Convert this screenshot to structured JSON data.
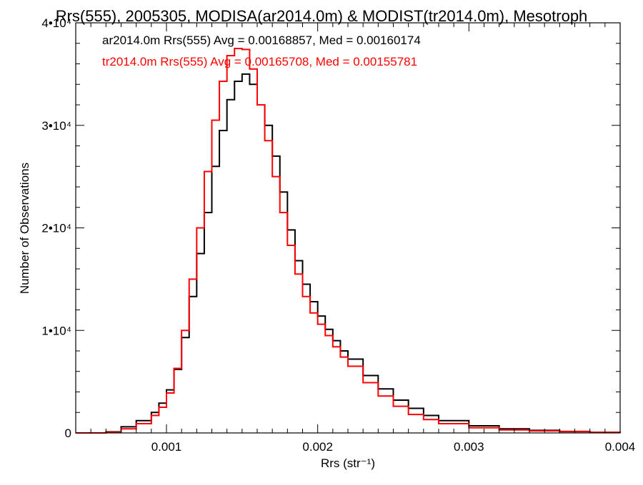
{
  "chart_data": {
    "type": "line",
    "title": "Rrs(555), 2005305, MODISA(ar2014.0m) & MODIST(tr2014.0m), Mesotroph",
    "xlabel": "Rrs (str⁻¹)",
    "ylabel": "Number of Observations",
    "xlim": [
      0.0004,
      0.004
    ],
    "ylim": [
      0,
      40000
    ],
    "x_ticks": [
      {
        "value": 0.001,
        "label": "0.001"
      },
      {
        "value": 0.002,
        "label": "0.002"
      },
      {
        "value": 0.003,
        "label": "0.003"
      },
      {
        "value": 0.004,
        "label": "0.004"
      }
    ],
    "y_ticks": [
      {
        "value": 0,
        "label": "0"
      },
      {
        "value": 10000,
        "label": "1•10⁴"
      },
      {
        "value": 20000,
        "label": "2•10⁴"
      },
      {
        "value": 30000,
        "label": "3•10⁴"
      },
      {
        "value": 40000,
        "label": "4•10⁴"
      }
    ],
    "grid": false,
    "legend_position": "top-left",
    "annotations": [
      {
        "text": "ar2014.0m Rrs(555) Avg = 0.00168857, Med = 0.00160174",
        "color": "#000000"
      },
      {
        "text": "tr2014.0m Rrs(555) Avg = 0.00165708, Med = 0.00155781",
        "color": "#ff0000"
      }
    ],
    "series": [
      {
        "color": "#000000",
        "x": [
          0.0004,
          0.0005,
          0.0006,
          0.0007,
          0.0008,
          0.0009,
          0.00095,
          0.001,
          0.00105,
          0.0011,
          0.00115,
          0.0012,
          0.00125,
          0.0013,
          0.00135,
          0.0014,
          0.00145,
          0.0015,
          0.00155,
          0.0016,
          0.00165,
          0.0017,
          0.00175,
          0.0018,
          0.00185,
          0.0019,
          0.00195,
          0.002,
          0.00205,
          0.0021,
          0.00215,
          0.0022,
          0.0023,
          0.0024,
          0.0025,
          0.0026,
          0.0027,
          0.0028,
          0.003,
          0.0032,
          0.0034,
          0.0036,
          0.0038,
          0.004
        ],
        "values": [
          0,
          0,
          100,
          600,
          1200,
          2000,
          2900,
          4200,
          6200,
          9300,
          13300,
          17500,
          21500,
          26000,
          29500,
          32500,
          34300,
          35000,
          34000,
          32000,
          30000,
          27000,
          23500,
          19800,
          16800,
          14500,
          12800,
          11400,
          10100,
          9000,
          8000,
          7200,
          5600,
          4300,
          3200,
          2400,
          1700,
          1200,
          700,
          400,
          250,
          150,
          60,
          30
        ]
      },
      {
        "color": "#ff0000",
        "x": [
          0.0004,
          0.0005,
          0.0006,
          0.0007,
          0.0008,
          0.0009,
          0.00095,
          0.001,
          0.00105,
          0.0011,
          0.00115,
          0.0012,
          0.00125,
          0.0013,
          0.00135,
          0.0014,
          0.00145,
          0.0015,
          0.00155,
          0.0016,
          0.00165,
          0.0017,
          0.00175,
          0.0018,
          0.00185,
          0.0019,
          0.00195,
          0.002,
          0.00205,
          0.0021,
          0.00215,
          0.0022,
          0.0023,
          0.0024,
          0.0025,
          0.0026,
          0.0027,
          0.0028,
          0.003,
          0.0032,
          0.0034,
          0.0036,
          0.0038,
          0.004
        ],
        "values": [
          0,
          0,
          50,
          400,
          900,
          1700,
          2500,
          3900,
          6300,
          10000,
          15000,
          20000,
          25500,
          30500,
          34300,
          36800,
          37500,
          37400,
          35500,
          32000,
          28500,
          25000,
          21500,
          18300,
          15500,
          13300,
          11700,
          10600,
          9500,
          8400,
          7400,
          6500,
          4900,
          3600,
          2600,
          1800,
          1300,
          900,
          500,
          300,
          200,
          120,
          50,
          20
        ]
      }
    ]
  }
}
